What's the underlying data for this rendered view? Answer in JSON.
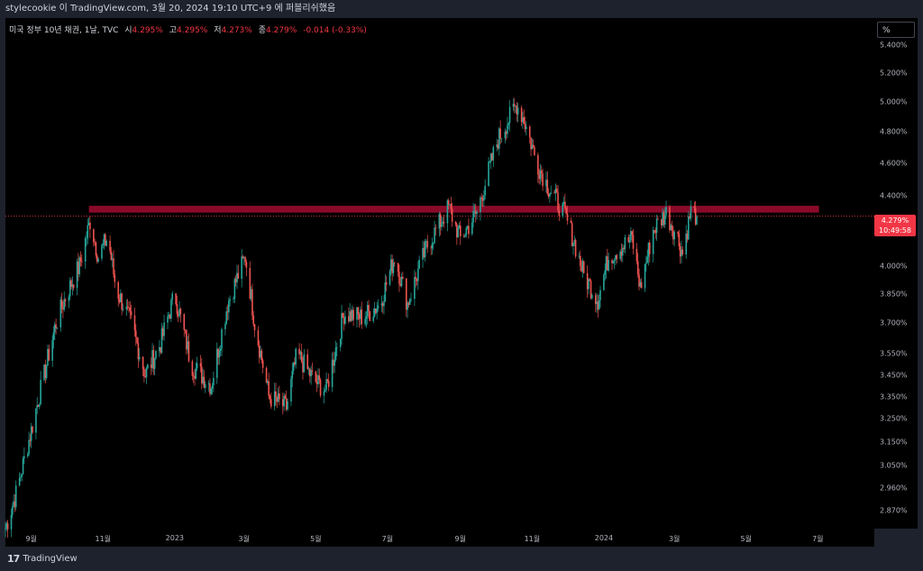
{
  "header": {
    "published_text": "stylecookie 이 TradingView.com, 3월 20, 2024 19:10 UTC+9 에 퍼블리쉬했음"
  },
  "legend": {
    "symbol": "미국 정부 10년 채권, 1날, TVC",
    "open_label": "시",
    "open_value": "4.295%",
    "high_label": "고",
    "high_value": "4.295%",
    "low_label": "저",
    "low_value": "4.273%",
    "close_label": "종",
    "close_value": "4.279%",
    "change_value": "-0.014 (-0.33%)"
  },
  "axis": {
    "unit_label": "%",
    "last_price_label": "4.279%",
    "countdown_label": "10:49:58"
  },
  "colors": {
    "up": "#26a69a",
    "down": "#ef5350",
    "resistance_band": "#8b0a2a",
    "last_price": "#f23645",
    "background": "#000000"
  },
  "footer": {
    "brand": "TradingView",
    "brand_icon": "tradingview-logo-icon"
  },
  "chart_data": {
    "type": "candlestick",
    "y_scale": "log",
    "ylim": [
      2.8,
      5.6
    ],
    "y_ticks": [
      "5.400%",
      "5.200%",
      "5.000%",
      "4.800%",
      "4.600%",
      "4.400%",
      "4.200%",
      "4.000%",
      "3.850%",
      "3.700%",
      "3.550%",
      "3.450%",
      "3.350%",
      "3.250%",
      "3.150%",
      "3.050%",
      "2.960%",
      "2.870%"
    ],
    "x_ticks": [
      "9월",
      "11월",
      "2023",
      "3월",
      "5월",
      "7월",
      "9월",
      "11월",
      "2024",
      "3월",
      "5월",
      "7월"
    ],
    "x_tick_dates": [
      "2022-09-01",
      "2022-11-01",
      "2023-01-01",
      "2023-03-01",
      "2023-05-01",
      "2023-07-01",
      "2023-09-01",
      "2023-11-01",
      "2024-01-01",
      "2024-03-01",
      "2024-05-01",
      "2024-07-01"
    ],
    "xlim": [
      "2022-08-10",
      "2024-08-15"
    ],
    "price_path": [
      [
        "2022-08-10",
        2.8
      ],
      [
        "2022-08-20",
        2.95
      ],
      [
        "2022-09-01",
        3.2
      ],
      [
        "2022-09-12",
        3.45
      ],
      [
        "2022-09-22",
        3.7
      ],
      [
        "2022-10-01",
        3.85
      ],
      [
        "2022-10-12",
        4.0
      ],
      [
        "2022-10-21",
        4.25
      ],
      [
        "2022-10-28",
        4.05
      ],
      [
        "2022-11-05",
        4.16
      ],
      [
        "2022-11-12",
        3.88
      ],
      [
        "2022-11-25",
        3.7
      ],
      [
        "2022-12-07",
        3.45
      ],
      [
        "2022-12-20",
        3.6
      ],
      [
        "2023-01-01",
        3.85
      ],
      [
        "2023-01-15",
        3.5
      ],
      [
        "2023-02-01",
        3.4
      ],
      [
        "2023-02-15",
        3.8
      ],
      [
        "2023-03-02",
        4.05
      ],
      [
        "2023-03-10",
        3.7
      ],
      [
        "2023-03-22",
        3.35
      ],
      [
        "2023-04-06",
        3.3
      ],
      [
        "2023-04-15",
        3.55
      ],
      [
        "2023-04-30",
        3.42
      ],
      [
        "2023-05-10",
        3.38
      ],
      [
        "2023-05-25",
        3.75
      ],
      [
        "2023-06-10",
        3.73
      ],
      [
        "2023-06-25",
        3.8
      ],
      [
        "2023-07-07",
        4.05
      ],
      [
        "2023-07-18",
        3.8
      ],
      [
        "2023-08-03",
        4.1
      ],
      [
        "2023-08-22",
        4.33
      ],
      [
        "2023-09-01",
        4.15
      ],
      [
        "2023-09-15",
        4.3
      ],
      [
        "2023-10-03",
        4.75
      ],
      [
        "2023-10-19",
        4.98
      ],
      [
        "2023-10-25",
        4.88
      ],
      [
        "2023-11-05",
        4.6
      ],
      [
        "2023-11-15",
        4.45
      ],
      [
        "2023-11-28",
        4.3
      ],
      [
        "2023-12-06",
        4.15
      ],
      [
        "2023-12-15",
        3.95
      ],
      [
        "2023-12-27",
        3.82
      ],
      [
        "2024-01-05",
        4.05
      ],
      [
        "2024-01-15",
        4.1
      ],
      [
        "2024-01-25",
        4.15
      ],
      [
        "2024-02-01",
        3.88
      ],
      [
        "2024-02-12",
        4.2
      ],
      [
        "2024-02-23",
        4.3
      ],
      [
        "2024-03-04",
        4.15
      ],
      [
        "2024-03-08",
        4.07
      ],
      [
        "2024-03-15",
        4.31
      ],
      [
        "2024-03-20",
        4.279
      ]
    ],
    "last_close": 4.279,
    "resistance_band": [
      4.3,
      4.34
    ],
    "legend_placement": "top-left",
    "grid": false
  }
}
